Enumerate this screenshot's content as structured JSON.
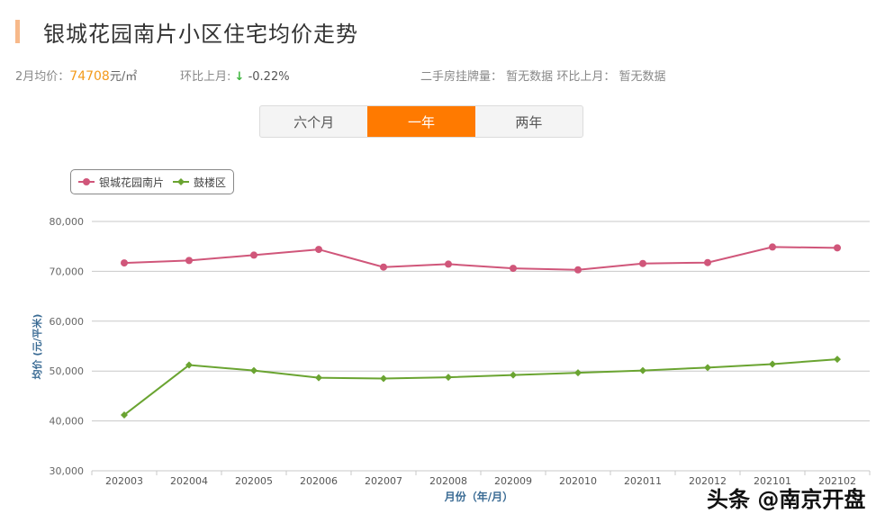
{
  "header": {
    "title": "银城花园南片小区住宅均价走势",
    "accent_color": "#f7b98a"
  },
  "stats": {
    "price_label": "2月均价：",
    "price_value": "74708",
    "price_unit": "元/㎡",
    "mom_label": "环比上月:",
    "mom_arrow": "↓",
    "mom_value": "-0.22%",
    "second_hand_label": "二手房挂牌量：",
    "second_hand_value": "暂无数据",
    "second_mom_label": "环比上月：",
    "second_mom_value": "暂无数据"
  },
  "tabs": [
    {
      "label": "六个月",
      "active": false
    },
    {
      "label": "一年",
      "active": true
    },
    {
      "label": "两年",
      "active": false
    }
  ],
  "legend": [
    {
      "label": "银城花园南片",
      "color": "#d0567a",
      "marker": "circle"
    },
    {
      "label": "鼓楼区",
      "color": "#6aa431",
      "marker": "diamond"
    }
  ],
  "chart_data": {
    "type": "line",
    "title": "银城花园南片小区住宅均价走势",
    "xlabel": "月份（年/月）",
    "ylabel": "均价 (元/平米)",
    "categories": [
      "202003",
      "202004",
      "202005",
      "202006",
      "202007",
      "202008",
      "202009",
      "202010",
      "202011",
      "202012",
      "202101",
      "202102"
    ],
    "series": [
      {
        "name": "银城花园南片",
        "color": "#d0567a",
        "values": [
          71680,
          72170,
          73250,
          74390,
          70850,
          71440,
          70600,
          70300,
          71570,
          71750,
          74870,
          74708
        ]
      },
      {
        "name": "鼓楼区",
        "color": "#6aa431",
        "values": [
          41200,
          51200,
          50100,
          48650,
          48500,
          48750,
          49200,
          49650,
          50100,
          50700,
          51400,
          52350
        ]
      }
    ],
    "ylim": [
      30000,
      80000
    ],
    "yticks": [
      "30,000",
      "40,000",
      "50,000",
      "60,000",
      "70,000",
      "80,000"
    ],
    "grid": true,
    "legend_position": "top-left"
  },
  "watermark": "头条 @南京开盘"
}
